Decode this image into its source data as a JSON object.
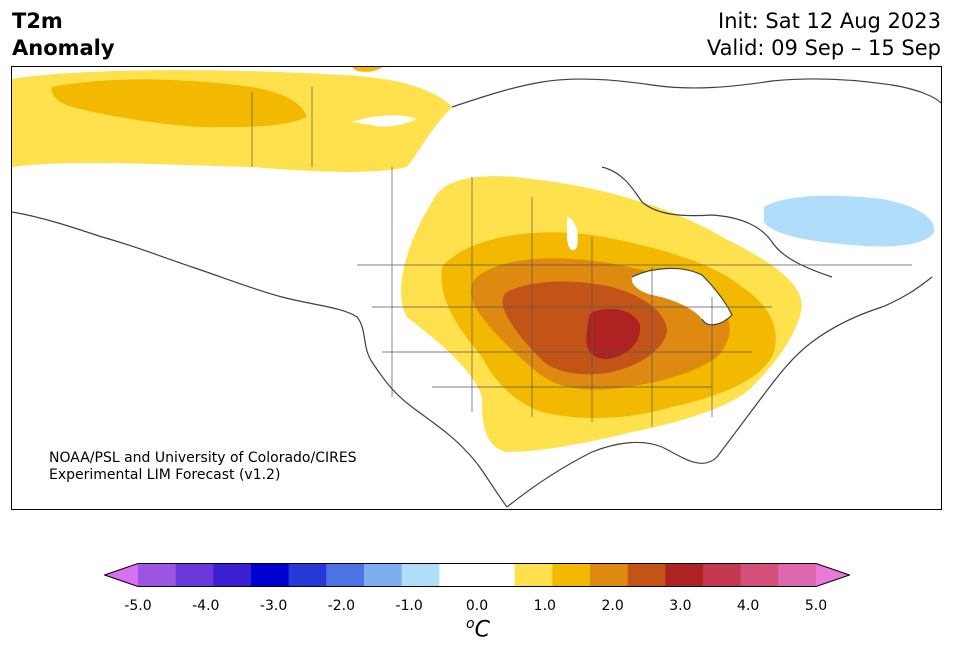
{
  "title": {
    "left_line1": "T2m",
    "left_line2": "Anomaly",
    "init": "Init: Sat 12 Aug 2023",
    "valid": "Valid: 09 Sep – 15 Sep"
  },
  "credit": {
    "line1": "NOAA/PSL and University of Colorado/CIRES",
    "line2": "Experimental LIM Forecast (v1.2)"
  },
  "colorbar": {
    "unit": "C",
    "unit_prefix": "o",
    "colors": [
      "#d66ff0",
      "#9b55e0",
      "#6a38d8",
      "#3a20d0",
      "#0000d0",
      "#2838d8",
      "#4e73e3",
      "#7ab0f0",
      "#b0defa",
      "#ffffff",
      "#ffffff",
      "#ffe14e",
      "#f3b800",
      "#de8a10",
      "#c35418",
      "#ae2222",
      "#c43850",
      "#d2507a",
      "#de68b0",
      "#e97ad8"
    ],
    "tick_values": [
      -5.0,
      -4.0,
      -3.0,
      -2.0,
      -1.0,
      0.0,
      1.0,
      2.0,
      3.0,
      4.0,
      5.0
    ],
    "tick_labels": [
      "-5.0",
      "-4.0",
      "-3.0",
      "-2.0",
      "-1.0",
      "0.0",
      "1.0",
      "2.0",
      "3.0",
      "4.0",
      "5.0"
    ]
  },
  "map": {
    "region": "North America",
    "anomaly_colors": {
      "level_0_5": "#ffe14e",
      "level_1_0": "#f3b800",
      "level_1_5": "#de8a10",
      "level_2_0": "#c35418",
      "level_2_5": "#ae2222",
      "neg_0_5": "#b0defa"
    }
  }
}
